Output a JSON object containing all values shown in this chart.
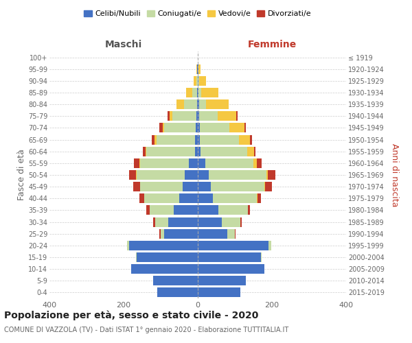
{
  "age_groups": [
    "0-4",
    "5-9",
    "10-14",
    "15-19",
    "20-24",
    "25-29",
    "30-34",
    "35-39",
    "40-44",
    "45-49",
    "50-54",
    "55-59",
    "60-64",
    "65-69",
    "70-74",
    "75-79",
    "80-84",
    "85-89",
    "90-94",
    "95-99",
    "100+"
  ],
  "birth_years": [
    "2015-2019",
    "2010-2014",
    "2005-2009",
    "2000-2004",
    "1995-1999",
    "1990-1994",
    "1985-1989",
    "1980-1984",
    "1975-1979",
    "1970-1974",
    "1965-1969",
    "1960-1964",
    "1955-1959",
    "1950-1954",
    "1945-1949",
    "1940-1944",
    "1935-1939",
    "1930-1934",
    "1925-1929",
    "1920-1924",
    "≤ 1919"
  ],
  "males": {
    "celibi": [
      110,
      120,
      180,
      165,
      185,
      90,
      80,
      65,
      50,
      40,
      35,
      25,
      8,
      7,
      5,
      3,
      2,
      2,
      0,
      2,
      0
    ],
    "coniugati": [
      0,
      0,
      0,
      2,
      5,
      10,
      35,
      65,
      95,
      115,
      130,
      130,
      130,
      105,
      85,
      65,
      35,
      12,
      3,
      0,
      0
    ],
    "vedovi": [
      0,
      0,
      0,
      0,
      0,
      0,
      0,
      0,
      0,
      1,
      2,
      2,
      2,
      4,
      5,
      8,
      20,
      18,
      8,
      2,
      0
    ],
    "divorziati": [
      0,
      0,
      0,
      0,
      0,
      3,
      5,
      8,
      12,
      18,
      18,
      15,
      8,
      8,
      8,
      5,
      0,
      0,
      0,
      0,
      0
    ]
  },
  "females": {
    "nubili": [
      115,
      130,
      180,
      170,
      190,
      80,
      65,
      55,
      40,
      35,
      30,
      20,
      8,
      6,
      5,
      4,
      3,
      2,
      1,
      2,
      0
    ],
    "coniugate": [
      0,
      0,
      0,
      2,
      8,
      20,
      50,
      80,
      120,
      145,
      155,
      130,
      125,
      105,
      80,
      50,
      20,
      8,
      2,
      0,
      0
    ],
    "vedove": [
      0,
      0,
      0,
      0,
      0,
      0,
      0,
      0,
      1,
      2,
      4,
      10,
      18,
      30,
      40,
      50,
      60,
      45,
      20,
      5,
      0
    ],
    "divorziate": [
      0,
      0,
      0,
      0,
      0,
      2,
      3,
      5,
      10,
      18,
      20,
      12,
      5,
      5,
      5,
      3,
      0,
      0,
      0,
      0,
      0
    ]
  },
  "colors": {
    "celibi": "#4472c4",
    "coniugati": "#c5dba4",
    "vedovi": "#f5c842",
    "divorziati": "#c0392b"
  },
  "title": "Popolazione per età, sesso e stato civile - 2020",
  "subtitle": "COMUNE DI VAZZOLA (TV) - Dati ISTAT 1° gennaio 2020 - Elaborazione TUTTITALIA.IT",
  "xlabel_left": "Maschi",
  "xlabel_right": "Femmine",
  "ylabel_left": "Fasce di età",
  "ylabel_right": "Anni di nascita",
  "xlim": 400,
  "legend_labels": [
    "Celibi/Nubili",
    "Coniugati/e",
    "Vedovi/e",
    "Divorziati/e"
  ],
  "background_color": "#ffffff",
  "grid_color": "#cccccc"
}
